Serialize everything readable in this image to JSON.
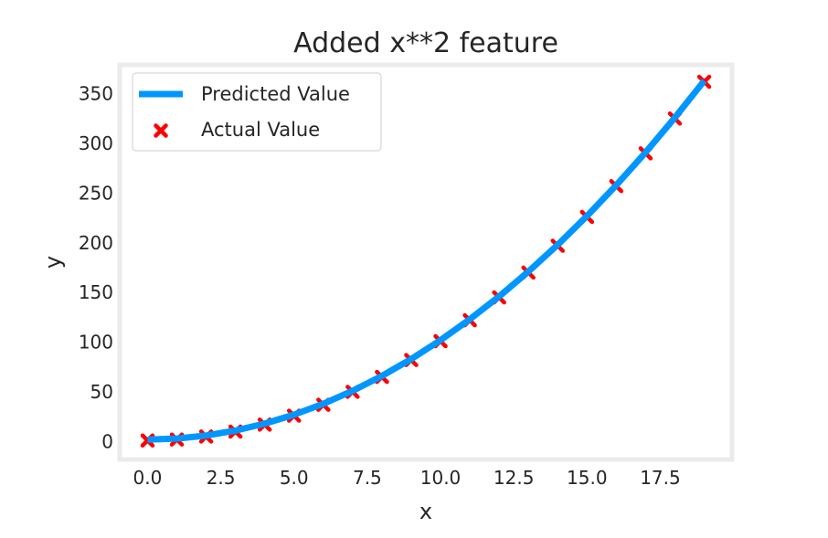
{
  "chart_data": {
    "type": "line",
    "title": "Added x**2 feature",
    "xlabel": "x",
    "ylabel": "y",
    "xlim": [
      -0.95,
      19.95
    ],
    "ylim": [
      -18.05,
      379.05
    ],
    "grid": false,
    "legend": {
      "placement": "top-left"
    },
    "x_ticks": [
      0.0,
      2.5,
      5.0,
      7.5,
      10.0,
      12.5,
      15.0,
      17.5
    ],
    "x_tick_labels": [
      "0.0",
      "2.5",
      "5.0",
      "7.5",
      "10.0",
      "12.5",
      "15.0",
      "17.5"
    ],
    "y_ticks": [
      0,
      50,
      100,
      150,
      200,
      250,
      300,
      350
    ],
    "y_tick_labels": [
      "0",
      "50",
      "100",
      "150",
      "200",
      "250",
      "300",
      "350"
    ],
    "series": [
      {
        "name": "Predicted Value",
        "kind": "line",
        "color": "#0096ff",
        "x": [
          0,
          1,
          2,
          3,
          4,
          5,
          6,
          7,
          8,
          9,
          10,
          11,
          12,
          13,
          14,
          15,
          16,
          17,
          18,
          19
        ],
        "y": [
          2,
          3,
          6,
          11,
          18,
          27,
          38,
          51,
          66,
          83,
          102,
          123,
          146,
          171,
          198,
          227,
          258,
          291,
          326,
          363
        ]
      },
      {
        "name": "Actual Value",
        "kind": "scatter",
        "marker": "x",
        "color": "#ff0000",
        "x": [
          0,
          1,
          2,
          3,
          4,
          5,
          6,
          7,
          8,
          9,
          10,
          11,
          12,
          13,
          14,
          15,
          16,
          17,
          18,
          19
        ],
        "y": [
          1,
          2,
          5,
          10,
          17,
          26,
          37,
          50,
          65,
          82,
          101,
          122,
          145,
          170,
          197,
          226,
          257,
          290,
          325,
          362
        ]
      }
    ]
  }
}
